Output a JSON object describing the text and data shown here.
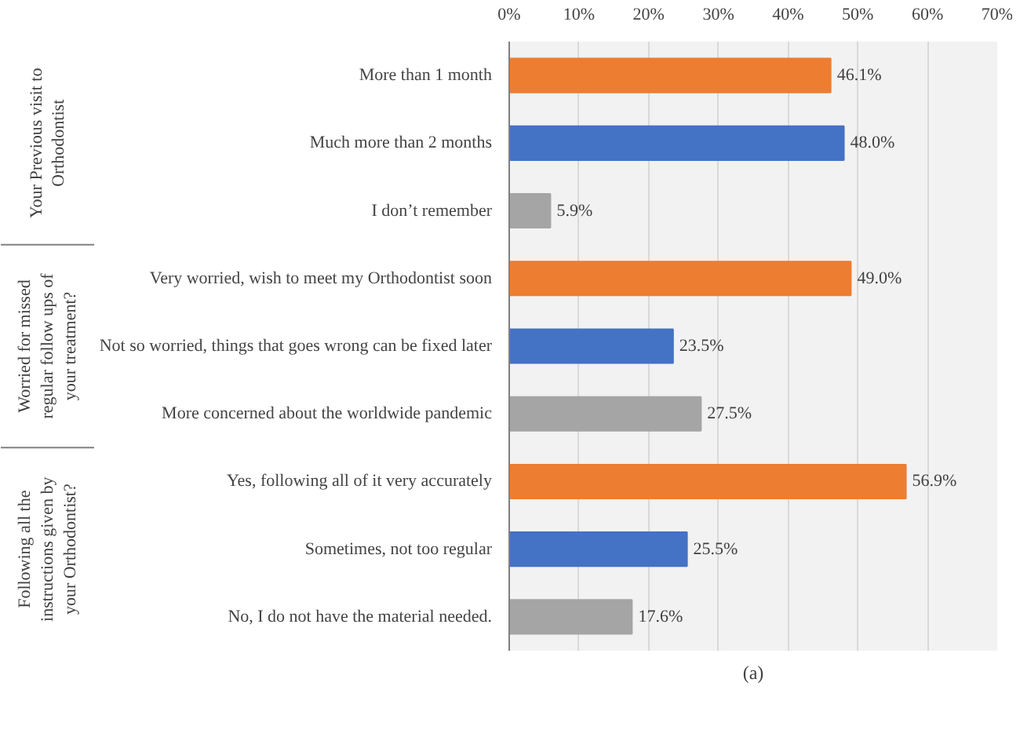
{
  "chart_data": {
    "type": "bar",
    "orientation": "horizontal",
    "categories": [
      "More than 1 month",
      "Much more than 2 months",
      "I don’t remember",
      "Very worried, wish to meet my Orthodontist soon",
      "Not so worried, things that goes wrong can be fixed later",
      "More concerned about the worldwide pandemic",
      "Yes, following all of it very accurately",
      "Sometimes, not too regular",
      "No, I do not have the material needed."
    ],
    "values": [
      46.1,
      48.0,
      5.9,
      49.0,
      23.5,
      27.5,
      56.9,
      25.5,
      17.6
    ],
    "colors": [
      "#ed7d31",
      "#4472c4",
      "#a5a5a5",
      "#ed7d31",
      "#4472c4",
      "#a5a5a5",
      "#ed7d31",
      "#4472c4",
      "#a5a5a5"
    ],
    "value_labels": [
      "46.1%",
      "48.0%",
      "5.9%",
      "49.0%",
      "23.5%",
      "27.5%",
      "56.9%",
      "25.5%",
      "17.6%"
    ],
    "xlim": [
      0,
      70
    ],
    "xticks": [
      {
        "value": 0,
        "label": "0%"
      },
      {
        "value": 10,
        "label": "10%"
      },
      {
        "value": 20,
        "label": "20%"
      },
      {
        "value": 30,
        "label": "30%"
      },
      {
        "value": 40,
        "label": "40%"
      },
      {
        "value": 50,
        "label": "50%"
      },
      {
        "value": 60,
        "label": "60%"
      },
      {
        "value": 70,
        "label": "70%"
      }
    ],
    "grid": "x",
    "annotations": [
      "Your Previous visit to Orthodontist",
      "Worried for missed regular follow ups of your treatment?",
      "Following all the instructions given by your Orthodontist?",
      "(a)"
    ]
  }
}
